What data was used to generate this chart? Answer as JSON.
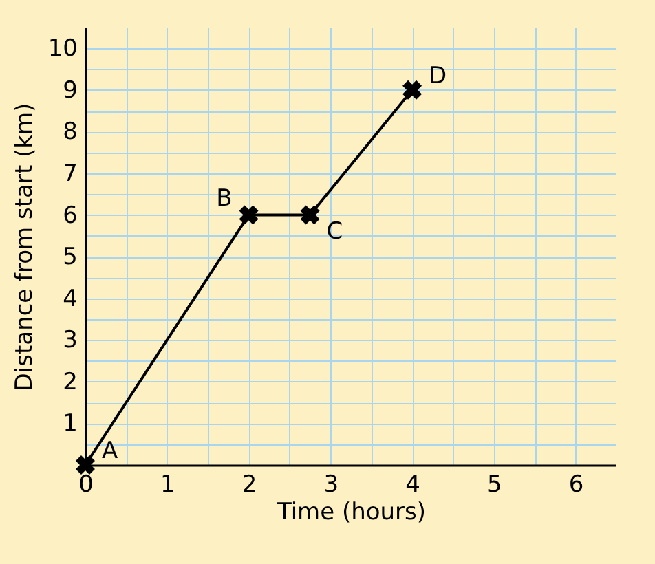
{
  "chart_data": {
    "type": "line",
    "xlabel": "Time (hours)",
    "ylabel": "Distance from start (km)",
    "x": [
      0,
      2,
      2.75,
      4
    ],
    "series": [
      {
        "color": "#000000",
        "values": [
          0,
          6,
          6,
          9
        ]
      }
    ],
    "xlim": [
      0,
      6.5
    ],
    "ylim": [
      0,
      10.5
    ],
    "xticks": [
      0,
      {
        "value": 0.5,
        "label": null
      },
      1,
      {
        "value": 1.5,
        "label": null
      },
      2,
      {
        "value": 2.5,
        "label": null
      },
      3,
      {
        "value": 3.5,
        "label": null
      },
      4,
      {
        "value": 4.5,
        "label": null
      },
      5,
      {
        "value": 5.5,
        "label": null
      },
      6
    ],
    "yticks": [
      {
        "value": 0,
        "label": null
      },
      {
        "value": 0.5,
        "label": null
      },
      1,
      {
        "value": 1.5,
        "label": null
      },
      2,
      {
        "value": 2.5,
        "label": null
      },
      3,
      {
        "value": 3.5,
        "label": null
      },
      4,
      {
        "value": 4.5,
        "label": null
      },
      5,
      {
        "value": 5.5,
        "label": null
      },
      6,
      {
        "value": 6.5,
        "label": null
      },
      7,
      {
        "value": 7.5,
        "label": null
      },
      8,
      {
        "value": 8.5,
        "label": null
      },
      9,
      {
        "value": 9.5,
        "label": null
      },
      10
    ],
    "annotations": [
      {
        "text": "A",
        "x": 0,
        "y": 0
      },
      {
        "text": "B",
        "x": 2,
        "y": 6
      },
      {
        "text": "C",
        "x": 2.75,
        "y": 6
      },
      {
        "text": "D",
        "x": 4,
        "y": 9
      }
    ],
    "grid": true,
    "marker": "cross",
    "line_style": "solid"
  }
}
